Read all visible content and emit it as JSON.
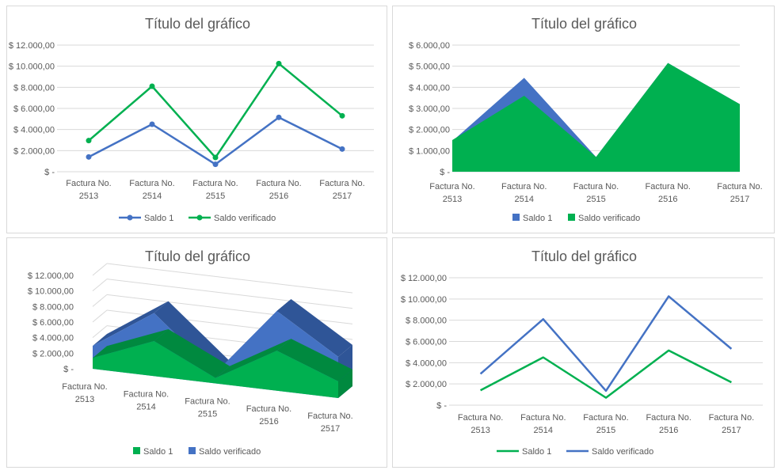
{
  "colors": {
    "saldo1": "#4472c4",
    "saldo_verificado": "#00b050",
    "grid": "#d9d9d9",
    "text": "#595959"
  },
  "chart_data": [
    {
      "type": "line",
      "title": "Título del gráfico",
      "categories": [
        [
          "Factura No.",
          "2513"
        ],
        [
          "Factura No.",
          "2514"
        ],
        [
          "Factura No.",
          "2515"
        ],
        [
          "Factura No.",
          "2516"
        ],
        [
          "Factura No.",
          "2517"
        ]
      ],
      "series": [
        {
          "name": "Saldo 1",
          "values": [
            1400,
            4500,
            700,
            5150,
            2150
          ],
          "color": "#4472c4"
        },
        {
          "name": "Saldo verificado",
          "values": [
            2950,
            8100,
            1350,
            10250,
            5300
          ],
          "color": "#00b050"
        }
      ],
      "ylim": [
        0,
        12000
      ],
      "yticks": [
        "$ -",
        "$ 2.000,00",
        "$ 4.000,00",
        "$ 6.000,00",
        "$ 8.000,00",
        "$ 10.000,00",
        "$ 12.000,00"
      ],
      "markers": true,
      "grid": true,
      "legend": "bottom"
    },
    {
      "type": "area",
      "title": "Título del gráfico",
      "categories": [
        [
          "Factura No.",
          "2513"
        ],
        [
          "Factura No.",
          "2514"
        ],
        [
          "Factura No.",
          "2515"
        ],
        [
          "Factura No.",
          "2516"
        ],
        [
          "Factura No.",
          "2517"
        ]
      ],
      "series": [
        {
          "name": "Saldo 1",
          "values": [
            1450,
            4450,
            700,
            5150,
            3200
          ],
          "color": "#4472c4"
        },
        {
          "name": "Saldo verificado",
          "values": [
            1500,
            3600,
            700,
            5150,
            3200
          ],
          "color": "#00b050"
        }
      ],
      "ylim": [
        0,
        6000
      ],
      "yticks": [
        "$ -",
        "$ 1.000,00",
        "$ 2.000,00",
        "$ 3.000,00",
        "$ 4.000,00",
        "$ 5.000,00",
        "$ 6.000,00"
      ],
      "grid": true,
      "legend": "bottom"
    },
    {
      "type": "area",
      "title": "Título del gráfico",
      "categories": [
        [
          "Factura No.",
          "2513"
        ],
        [
          "Factura No.",
          "2514"
        ],
        [
          "Factura No.",
          "2515"
        ],
        [
          "Factura No.",
          "2516"
        ],
        [
          "Factura No.",
          "2517"
        ]
      ],
      "series": [
        {
          "name": "Saldo 1",
          "values": [
            1400,
            4500,
            700,
            5150,
            2150
          ],
          "color": "#00b050"
        },
        {
          "name": "Saldo verificado",
          "values": [
            2950,
            8100,
            1350,
            10250,
            5300
          ],
          "color": "#4472c4"
        }
      ],
      "ylim": [
        0,
        12000
      ],
      "yticks": [
        "$ -",
        "$ 2.000,00",
        "$ 4.000,00",
        "$ 6.000,00",
        "$ 8.000,00",
        "$ 10.000,00",
        "$ 12.000,00"
      ],
      "view": "3d",
      "grid": true,
      "legend": "bottom"
    },
    {
      "type": "line",
      "title": "Título del gráfico",
      "categories": [
        [
          "Factura No.",
          "2513"
        ],
        [
          "Factura No.",
          "2514"
        ],
        [
          "Factura No.",
          "2515"
        ],
        [
          "Factura No.",
          "2516"
        ],
        [
          "Factura No.",
          "2517"
        ]
      ],
      "series": [
        {
          "name": "Saldo 1",
          "values": [
            1400,
            4500,
            700,
            5150,
            2150
          ],
          "color": "#00b050"
        },
        {
          "name": "Saldo verificado",
          "values": [
            2950,
            8100,
            1350,
            10250,
            5300
          ],
          "color": "#4472c4"
        }
      ],
      "ylim": [
        0,
        12000
      ],
      "yticks": [
        "$ -",
        "$ 2.000,00",
        "$ 4.000,00",
        "$ 6.000,00",
        "$ 8.000,00",
        "$ 10.000,00",
        "$ 12.000,00"
      ],
      "markers": false,
      "grid": true,
      "legend": "bottom"
    }
  ]
}
